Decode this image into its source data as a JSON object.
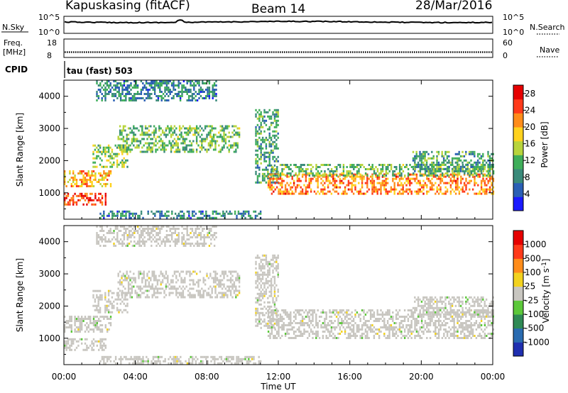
{
  "header": {
    "station": "Kapuskasing (fitACF)",
    "beam": "Beam 14",
    "date": "28/Mar/2016"
  },
  "noise_panel": {
    "left_label": "N.Sky",
    "left_ticks": [
      "10^5",
      "10^0"
    ],
    "right_ticks": [
      "10^5",
      "10^0"
    ],
    "right_label": "N.Search",
    "right_label_style": "dotted-underline"
  },
  "freq_panel": {
    "left_label_line1": "Freq.",
    "left_label_line2": "[MHz]",
    "left_ticks": [
      "18",
      "8"
    ],
    "right_ticks": [
      "60",
      "0"
    ],
    "right_label": "Nave",
    "right_label_style": "dotted-underline"
  },
  "cpid": {
    "label": "CPID",
    "value": "tau (fast) 503"
  },
  "chart_data": [
    {
      "type": "heatmap",
      "title": "",
      "xlabel": "",
      "ylabel": "Slant Range [km]",
      "x_unit": "hours UT",
      "xlim": [
        0,
        24
      ],
      "ylim": [
        180,
        4500
      ],
      "yticks": [
        1000,
        2000,
        3000,
        4000
      ],
      "colorbar": {
        "label": "Power [dB]",
        "ticks": [
          "4",
          "8",
          "12",
          "16",
          "20",
          "24",
          "28"
        ],
        "range": [
          0,
          30
        ],
        "colors": [
          "#1a1aff",
          "#2a5fb5",
          "#3a8a7a",
          "#3fae5a",
          "#b8d43c",
          "#ffd21e",
          "#ff8c1a",
          "#ff3a1a",
          "#e60000"
        ]
      },
      "features": [
        {
          "name": "morning-low-band",
          "x_start": 0.0,
          "x_end": 2.3,
          "range_km": [
            650,
            1000
          ],
          "power_db": 26
        },
        {
          "name": "morning-mid-band",
          "x_start": 0.0,
          "x_end": 2.6,
          "range_km": [
            1200,
            1700
          ],
          "power_db": 20
        },
        {
          "name": "rising-arc",
          "x_start": 1.6,
          "x_end": 3.6,
          "range_km": [
            1800,
            2500
          ],
          "power_db": 14
        },
        {
          "name": "day-band",
          "x_start": 3.0,
          "x_end": 9.8,
          "range_km": [
            2300,
            3100
          ],
          "power_db": 12
        },
        {
          "name": "upper-scatter",
          "x_start": 1.8,
          "x_end": 8.5,
          "range_km": [
            3900,
            4500
          ],
          "power_db": 8
        },
        {
          "name": "evening-descent",
          "x_start": 10.7,
          "x_end": 12.0,
          "range_km": [
            1300,
            3600
          ],
          "power_db": 10
        },
        {
          "name": "night-band",
          "x_start": 11.4,
          "x_end": 24.0,
          "range_km": [
            1000,
            1600
          ],
          "power_db": 22
        },
        {
          "name": "night-band-top",
          "x_start": 11.6,
          "x_end": 24.0,
          "range_km": [
            1550,
            1900
          ],
          "power_db": 12
        },
        {
          "name": "late-upper",
          "x_start": 19.5,
          "x_end": 24.0,
          "range_km": [
            1700,
            2300
          ],
          "power_db": 10
        },
        {
          "name": "ground-scatter-line",
          "x_start": 2.0,
          "x_end": 11.0,
          "range_km": [
            250,
            450
          ],
          "power_db": 8
        }
      ]
    },
    {
      "type": "heatmap",
      "title": "",
      "xlabel": "Time UT",
      "ylabel": "Slant Range [km]",
      "x_unit": "hours UT",
      "xlim": [
        0,
        24
      ],
      "ylim": [
        180,
        4500
      ],
      "yticks": [
        1000,
        2000,
        3000,
        4000
      ],
      "xticks": [
        "00:00",
        "04:00",
        "08:00",
        "12:00",
        "16:00",
        "20:00",
        "00:00"
      ],
      "colorbar": {
        "label": "Velocity [m s^-1]",
        "ticks": [
          "1000",
          "500",
          "100",
          "25",
          "-25",
          "-100",
          "-500",
          "-1000"
        ],
        "range": [
          -1200,
          1200
        ],
        "colors": [
          "#1f2fb0",
          "#2a6bb0",
          "#2f8a55",
          "#5cc83a",
          "#c8c6c0",
          "#f2d21e",
          "#ff8c1a",
          "#ff3a1a",
          "#e60000"
        ]
      },
      "features": [
        {
          "name": "morning-low-band",
          "x_start": 0.0,
          "x_end": 2.3,
          "range_km": [
            650,
            1000
          ],
          "velocity": 0
        },
        {
          "name": "morning-mid-band",
          "x_start": 0.0,
          "x_end": 2.6,
          "range_km": [
            1200,
            1700
          ],
          "velocity": 0
        },
        {
          "name": "rising-arc",
          "x_start": 1.6,
          "x_end": 3.6,
          "range_km": [
            1800,
            2500
          ],
          "velocity": 0
        },
        {
          "name": "day-band",
          "x_start": 3.0,
          "x_end": 9.8,
          "range_km": [
            2300,
            3100
          ],
          "velocity": 0
        },
        {
          "name": "upper-scatter",
          "x_start": 1.8,
          "x_end": 8.5,
          "range_km": [
            3900,
            4500
          ],
          "velocity": 0
        },
        {
          "name": "evening-descent",
          "x_start": 10.7,
          "x_end": 12.0,
          "range_km": [
            1300,
            3600
          ],
          "velocity": 0
        },
        {
          "name": "night-band",
          "x_start": 11.4,
          "x_end": 24.0,
          "range_km": [
            1000,
            1900
          ],
          "velocity": 0
        },
        {
          "name": "late-upper",
          "x_start": 19.5,
          "x_end": 24.0,
          "range_km": [
            1700,
            2300
          ],
          "velocity": -80
        },
        {
          "name": "ground-scatter-line",
          "x_start": 2.0,
          "x_end": 11.0,
          "range_km": [
            250,
            450
          ],
          "velocity": -60
        }
      ]
    }
  ]
}
